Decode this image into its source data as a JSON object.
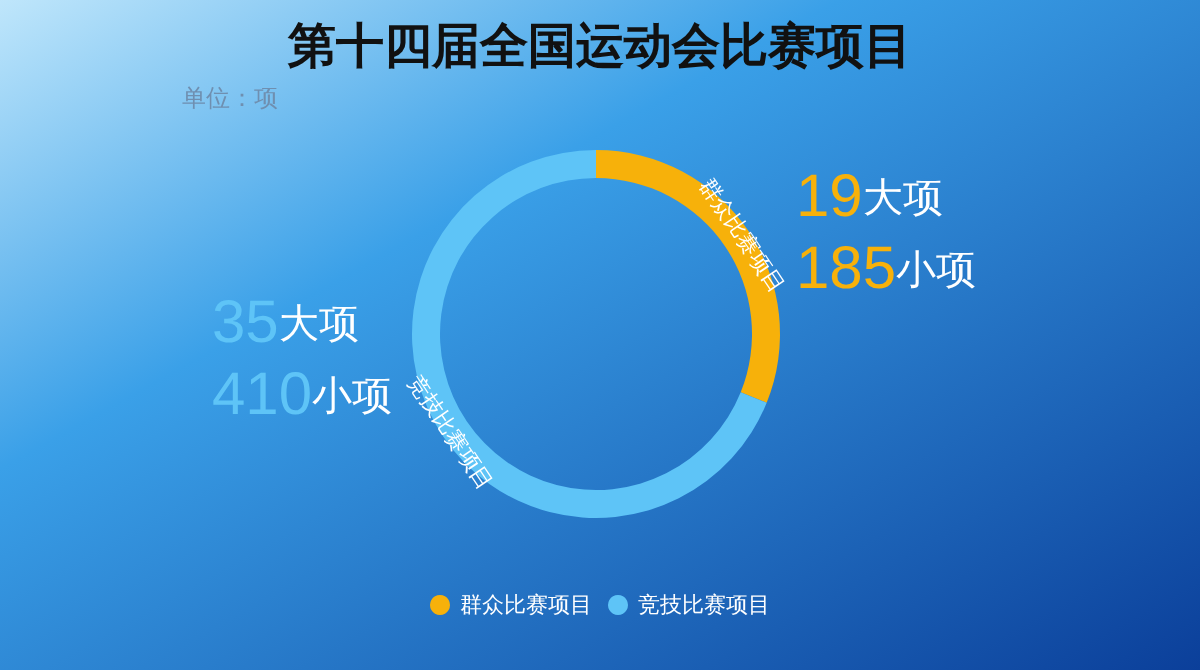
{
  "chart_data": {
    "type": "donut",
    "title": "第十四届全国运动会比赛项目",
    "subtitle": "单位：项",
    "categories": [
      "群众比赛项目",
      "竞技比赛项目"
    ],
    "values": [
      185,
      410
    ],
    "colors": [
      "#f7b10a",
      "#5ec4f7"
    ],
    "value_labels": [
      "19大项\n185小项",
      "35大项\n410小项"
    ],
    "legend": "bottom"
  }
}
